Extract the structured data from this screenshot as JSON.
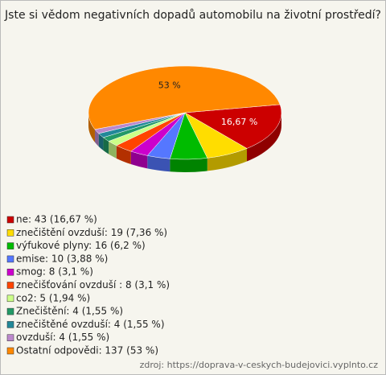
{
  "chart_data": {
    "type": "pie",
    "title": "Jste si vědom negativních dopadů automobilu na životní prostředí?",
    "categories": [
      "ne: 43 (16,67 %)",
      "znečištění ovzduší: 19 (7,36 %)",
      "výfukové plyny: 16 (6,2 %)",
      "emise: 10 (3,88 %)",
      "smog: 8 (3,1 %)",
      "znečišťování ovzduší : 8 (3,1 %)",
      "co2: 5 (1,94 %)",
      "Znečištění: 4 (1,55 %)",
      "znečištěné ovzduší: 4 (1,55 %)",
      "ovzduší: 4 (1,55 %)",
      "Ostatní odpovědi: 137 (53 %)"
    ],
    "values": [
      16.67,
      7.36,
      6.2,
      3.88,
      3.1,
      3.1,
      1.94,
      1.55,
      1.55,
      1.55,
      53
    ],
    "value_labels": [
      "16,67 %",
      null,
      null,
      null,
      null,
      null,
      null,
      null,
      null,
      null,
      "53 %"
    ],
    "colors": [
      "#cc0000",
      "#ffdd00",
      "#00bb00",
      "#5577ff",
      "#cc00cc",
      "#ff4400",
      "#ccff88",
      "#229966",
      "#228899",
      "#bb88cc",
      "#ff8800"
    ],
    "source": "zdroj: https://doprava-v-ceskych-budejovici.vyplnto.cz"
  }
}
